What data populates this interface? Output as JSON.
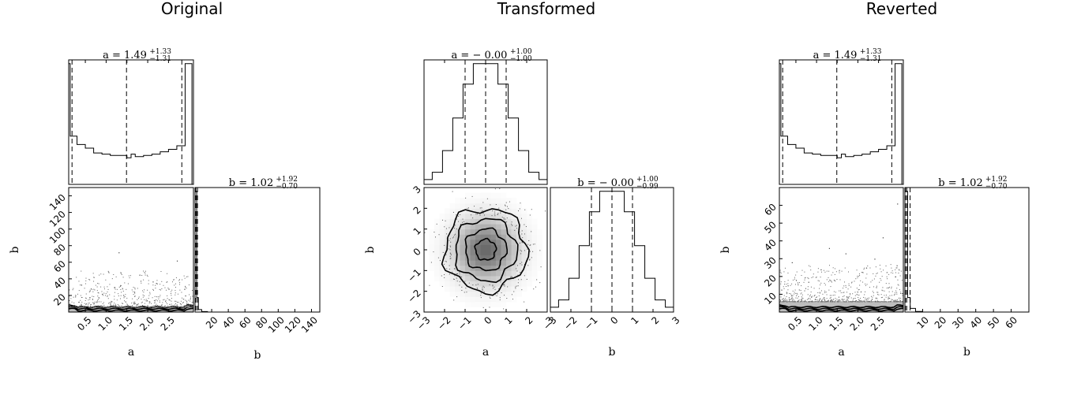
{
  "chart_data": [
    {
      "type": "histogram",
      "title": "Original",
      "parameters": [
        "a",
        "b"
      ],
      "a": {
        "label": "a",
        "range": [
          0.1,
          3.1
        ],
        "ticks": [
          "0.5",
          "1.0",
          "1.5",
          "2.0",
          "2.5"
        ],
        "tick_values": [
          0.5,
          1.0,
          1.5,
          2.0,
          2.5
        ],
        "quantiles": [
          0.18,
          1.49,
          2.82
        ],
        "summary": {
          "prefix": "a = ",
          "value": "1.49",
          "plus": "+1.33",
          "minus": "−1.31"
        },
        "hist": {
          "bin_edges": [
            0.1,
            0.136,
            0.3,
            0.5,
            0.7,
            0.9,
            1.1,
            1.3,
            1.5,
            1.6,
            1.7,
            1.9,
            2.1,
            2.3,
            2.5,
            2.7,
            2.9,
            3.064
          ],
          "counts": [
            1.0,
            0.4,
            0.33,
            0.3,
            0.26,
            0.25,
            0.24,
            0.24,
            0.22,
            0.25,
            0.23,
            0.24,
            0.25,
            0.27,
            0.29,
            0.32,
            1.0
          ]
        }
      },
      "b": {
        "label": "b",
        "range": [
          0,
          150
        ],
        "ticks": [
          "20",
          "40",
          "60",
          "80",
          "100",
          "120",
          "140"
        ],
        "tick_values": [
          20,
          40,
          60,
          80,
          100,
          120,
          140
        ],
        "quantiles": [
          0.32,
          1.02,
          2.94
        ],
        "summary": {
          "prefix": "b = ",
          "value": "1.02",
          "plus": "+1.92",
          "minus": "−0.70"
        },
        "hist": {
          "bin_edges": [
            0,
            2,
            4,
            8,
            15,
            150
          ],
          "counts": [
            1.0,
            0.12,
            0.02,
            0.004,
            0.0
          ]
        }
      },
      "scatter_style": "dense_band",
      "band_top": 6,
      "outlier_points": [
        [
          0.4,
          33
        ],
        [
          1.2,
          30
        ],
        [
          1.8,
          45
        ],
        [
          2.5,
          28
        ],
        [
          2.9,
          20
        ],
        [
          0.9,
          22
        ],
        [
          1.3,
          72
        ],
        [
          2.7,
          62
        ],
        [
          0.6,
          18
        ],
        [
          2.2,
          35
        ]
      ],
      "grid": false
    },
    {
      "type": "histogram",
      "title": "Transformed",
      "parameters": [
        "a",
        "b"
      ],
      "a": {
        "label": "a",
        "range": [
          -3,
          3
        ],
        "ticks": [
          "−3",
          "−2",
          "−1",
          "0",
          "1",
          "2",
          "3"
        ],
        "tick_values": [
          -3,
          -2,
          -1,
          0,
          1,
          2,
          3
        ],
        "quantiles": [
          -1.0,
          0.0,
          1.0
        ],
        "summary": {
          "prefix": "a = ",
          "value": "− 0.00",
          "plus": "+1.00",
          "minus": "−1.00"
        },
        "hist": {
          "bin_edges": [
            -3,
            -2.6,
            -2.1,
            -1.6,
            -1.1,
            -0.6,
            -0.3,
            0.3,
            0.6,
            1.1,
            1.6,
            2.1,
            2.6,
            3
          ],
          "counts": [
            0.04,
            0.1,
            0.28,
            0.55,
            0.83,
            1.0,
            1.0,
            1.0,
            0.83,
            0.55,
            0.28,
            0.1,
            0.04
          ]
        }
      },
      "b": {
        "label": "b",
        "range": [
          -3,
          3
        ],
        "ticks": [
          "−3",
          "−2",
          "−1",
          "0",
          "1",
          "2",
          "3"
        ],
        "tick_values": [
          -3,
          -2,
          -1,
          0,
          1,
          2,
          3
        ],
        "quantiles": [
          -1.0,
          0.0,
          1.0
        ],
        "summary": {
          "prefix": "b = ",
          "value": "− 0.00",
          "plus": "+1.00",
          "minus": "−0.99"
        },
        "hist": {
          "bin_edges": [
            -3,
            -2.6,
            -2.1,
            -1.6,
            -1.1,
            -0.6,
            -0.3,
            0.3,
            0.6,
            1.1,
            1.6,
            2.1,
            2.6,
            3
          ],
          "counts": [
            0.04,
            0.1,
            0.28,
            0.55,
            0.83,
            1.0,
            1.0,
            1.0,
            0.83,
            0.55,
            0.28,
            0.1,
            0.04
          ]
        }
      },
      "scatter_style": "gaussian_contour",
      "contour_sigmas": [
        0.5,
        1.0,
        1.5,
        2.0
      ],
      "grid": false
    },
    {
      "type": "histogram",
      "title": "Reverted",
      "parameters": [
        "a",
        "b"
      ],
      "a": {
        "label": "a",
        "range": [
          0.1,
          3.1
        ],
        "ticks": [
          "0.5",
          "1.0",
          "1.5",
          "2.0",
          "2.5"
        ],
        "tick_values": [
          0.5,
          1.0,
          1.5,
          2.0,
          2.5
        ],
        "quantiles": [
          0.18,
          1.49,
          2.82
        ],
        "summary": {
          "prefix": "a = ",
          "value": "1.49",
          "plus": "+1.33",
          "minus": "−1.31"
        },
        "hist": {
          "bin_edges": [
            0.1,
            0.136,
            0.3,
            0.5,
            0.7,
            0.9,
            1.1,
            1.3,
            1.5,
            1.6,
            1.7,
            1.9,
            2.1,
            2.3,
            2.5,
            2.7,
            2.9,
            3.064
          ],
          "counts": [
            1.0,
            0.4,
            0.33,
            0.3,
            0.26,
            0.25,
            0.24,
            0.24,
            0.22,
            0.25,
            0.23,
            0.24,
            0.25,
            0.27,
            0.29,
            0.32,
            1.0
          ]
        }
      },
      "b": {
        "label": "b",
        "range": [
          0,
          70
        ],
        "ticks": [
          "10",
          "20",
          "30",
          "40",
          "50",
          "60"
        ],
        "tick_values": [
          10,
          20,
          30,
          40,
          50,
          60
        ],
        "quantiles": [
          0.32,
          1.02,
          2.94
        ],
        "summary": {
          "prefix": "b = ",
          "value": "1.02",
          "plus": "+1.92",
          "minus": "−0.70"
        },
        "hist": {
          "bin_edges": [
            0,
            1.5,
            3,
            6,
            10,
            70
          ],
          "counts": [
            1.0,
            0.12,
            0.03,
            0.005,
            0.0
          ]
        }
      },
      "scatter_style": "dense_band",
      "band_top": 6,
      "outlier_points": [
        [
          0.4,
          28
        ],
        [
          1.1,
          24
        ],
        [
          1.7,
          33
        ],
        [
          2.4,
          30
        ],
        [
          2.9,
          20
        ],
        [
          0.8,
          17
        ],
        [
          1.3,
          36
        ],
        [
          2.6,
          42
        ],
        [
          0.3,
          15
        ],
        [
          2.2,
          25
        ],
        [
          2.95,
          61
        ]
      ],
      "grid": false
    }
  ]
}
